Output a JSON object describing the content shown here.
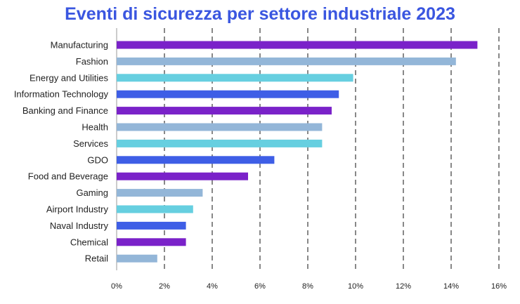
{
  "chart_data": {
    "type": "bar",
    "orientation": "horizontal",
    "title": "Eventi di sicurezza per settore industriale 2023",
    "xlabel": "",
    "ylabel": "",
    "xlim": [
      0,
      16
    ],
    "x_ticks": [
      0,
      2,
      4,
      6,
      8,
      10,
      12,
      14,
      16
    ],
    "x_tick_labels": [
      "0%",
      "2%",
      "4%",
      "6%",
      "8%",
      "10%",
      "12%",
      "14%",
      "16%"
    ],
    "grid": "vertical dashed",
    "legend": "none",
    "categories": [
      "Manufacturing",
      "Fashion",
      "Energy and Utilities",
      "Information Technology",
      "Banking and Finance",
      "Health",
      "Services",
      "GDO",
      "Food and Beverage",
      "Gaming",
      "Airport Industry",
      "Naval Industry",
      "Chemical",
      "Retail"
    ],
    "values": [
      15.1,
      14.2,
      9.9,
      9.3,
      9.0,
      8.6,
      8.6,
      6.6,
      5.5,
      3.6,
      3.2,
      2.9,
      2.9,
      1.7
    ],
    "colors": [
      "#7a22c9",
      "#93b6d8",
      "#66cfe0",
      "#3e5ee6",
      "#7a22c9",
      "#93b6d8",
      "#66cfe0",
      "#3e5ee6",
      "#7a22c9",
      "#93b6d8",
      "#66cfe0",
      "#3e5ee6",
      "#7a22c9",
      "#93b6d8"
    ],
    "title_color": "#3a56e0"
  }
}
